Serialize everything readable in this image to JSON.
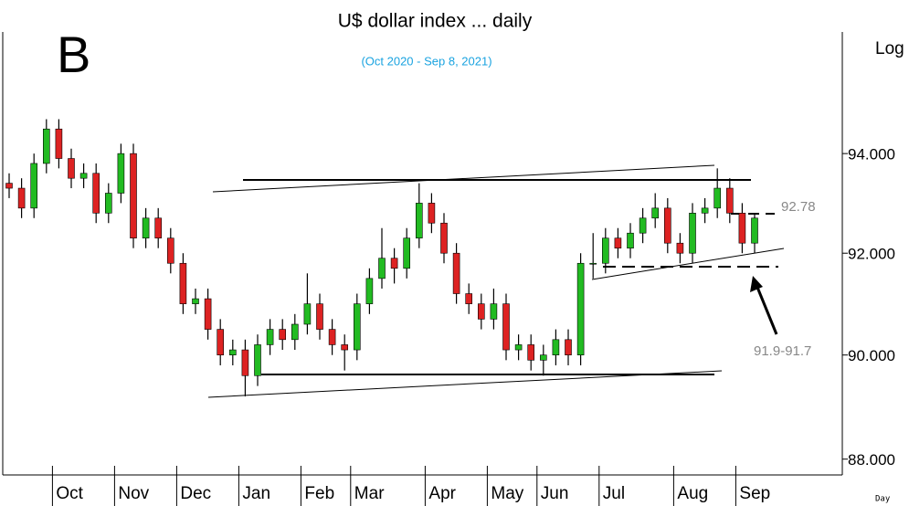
{
  "chart_data": {
    "type": "candlestick",
    "title": "U$ dollar index ... daily",
    "subtitle": "(Oct 2020 - Sep 8, 2021)",
    "panel_label": "B",
    "y_axis_label": "Log",
    "x_axis_label": "Day",
    "annotations": [
      "92.78",
      "91.9-91.7"
    ],
    "log_scale": true,
    "up_color": "#22bb22",
    "down_color": "#dd2222",
    "categories": [
      null,
      null,
      null,
      null,
      "Oct",
      null,
      null,
      null,
      null,
      "Nov",
      null,
      null,
      null,
      null,
      "Dec",
      null,
      null,
      null,
      null,
      "Jan",
      null,
      null,
      null,
      null,
      "Feb",
      null,
      null,
      null,
      "Mar",
      null,
      null,
      null,
      null,
      null,
      "Apr",
      null,
      null,
      null,
      null,
      "May",
      null,
      null,
      null,
      "Jun",
      null,
      null,
      null,
      null,
      "Jul",
      null,
      null,
      null,
      null,
      null,
      "Aug",
      null,
      null,
      null,
      null,
      "Sep",
      null
    ],
    "open": [
      93.4,
      93.3,
      92.9,
      93.8,
      94.5,
      93.9,
      93.5,
      93.6,
      92.8,
      93.2,
      94.0,
      92.3,
      92.7,
      92.3,
      91.8,
      91.0,
      91.1,
      90.5,
      90.0,
      90.1,
      89.6,
      90.2,
      90.5,
      90.3,
      90.6,
      91.0,
      90.5,
      90.2,
      90.1,
      91.0,
      91.5,
      91.9,
      91.7,
      92.3,
      93.0,
      92.6,
      92.0,
      91.2,
      91.0,
      90.7,
      91.0,
      90.1,
      90.2,
      89.9,
      90.0,
      90.3,
      90.0,
      91.8,
      91.8,
      92.3,
      92.1,
      92.4,
      92.7,
      92.9,
      92.2,
      92.0,
      92.8,
      92.9,
      93.3,
      92.8,
      92.2
    ],
    "high": [
      93.6,
      93.5,
      94.0,
      94.7,
      94.7,
      94.1,
      93.8,
      93.8,
      93.4,
      94.2,
      94.2,
      92.9,
      92.9,
      92.5,
      92.0,
      91.3,
      91.3,
      90.7,
      90.3,
      90.3,
      90.4,
      90.7,
      90.7,
      90.8,
      91.6,
      91.2,
      90.7,
      90.4,
      91.2,
      91.7,
      92.5,
      92.1,
      92.5,
      93.4,
      93.2,
      92.8,
      92.2,
      91.4,
      91.2,
      91.3,
      91.2,
      90.4,
      90.4,
      90.2,
      90.5,
      90.5,
      92.0,
      92.4,
      92.5,
      92.5,
      92.6,
      92.9,
      93.2,
      93.1,
      92.4,
      93.0,
      93.1,
      93.7,
      93.5,
      93.0,
      92.8
    ],
    "low": [
      93.1,
      92.7,
      92.7,
      93.6,
      93.7,
      93.3,
      93.3,
      92.6,
      92.6,
      93.0,
      92.1,
      92.1,
      92.1,
      91.6,
      90.8,
      90.8,
      90.3,
      89.8,
      89.8,
      89.2,
      89.4,
      90.0,
      90.1,
      90.1,
      90.4,
      90.3,
      90.0,
      89.7,
      89.9,
      90.8,
      91.3,
      91.4,
      91.5,
      92.1,
      92.4,
      91.8,
      91.0,
      90.8,
      90.5,
      90.5,
      89.9,
      89.9,
      89.7,
      89.6,
      89.8,
      89.8,
      89.8,
      91.5,
      91.6,
      91.9,
      91.9,
      92.2,
      92.5,
      92.0,
      91.8,
      91.8,
      92.6,
      92.7,
      92.6,
      92.0,
      92.0
    ],
    "close": [
      93.3,
      92.9,
      93.8,
      94.5,
      93.9,
      93.5,
      93.6,
      92.8,
      93.2,
      94.0,
      92.3,
      92.7,
      92.3,
      91.8,
      91.0,
      91.1,
      90.5,
      90.0,
      90.1,
      89.6,
      90.2,
      90.5,
      90.3,
      90.6,
      91.0,
      90.5,
      90.2,
      90.1,
      91.0,
      91.5,
      91.9,
      91.7,
      92.3,
      93.0,
      92.6,
      92.0,
      91.2,
      91.0,
      90.7,
      91.0,
      90.1,
      90.2,
      89.9,
      90.0,
      90.3,
      90.0,
      91.8,
      91.8,
      92.3,
      92.1,
      92.4,
      92.7,
      92.9,
      92.2,
      92.0,
      92.8,
      92.9,
      93.3,
      92.8,
      92.2,
      92.7
    ],
    "ylim": [
      87.7,
      96.5
    ],
    "yticks": [
      {
        "value": 88,
        "label": "88.000"
      },
      {
        "value": 90,
        "label": "90.000"
      },
      {
        "value": 92,
        "label": "92.000"
      },
      {
        "value": 94,
        "label": "94.000"
      }
    ]
  }
}
